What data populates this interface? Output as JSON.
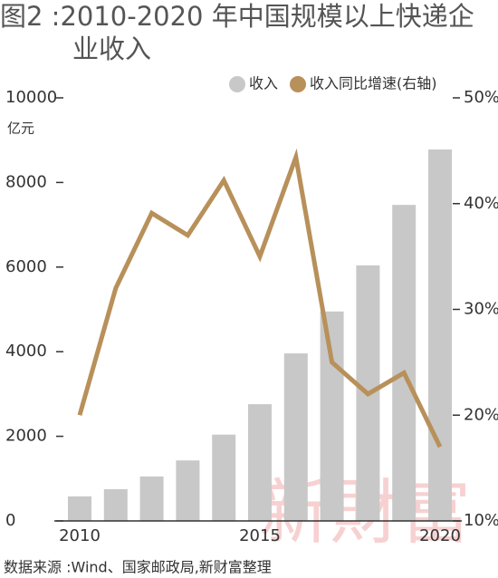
{
  "chart_data": {
    "type": "bar_line",
    "title": "图2 :2010-2020 年中国规模以上快递企业收入",
    "y_unit": "亿元",
    "source": "数据来源 :Wind、国家邮政局,新财富整理",
    "watermark": "新財富",
    "categories": [
      "2010",
      null,
      null,
      null,
      null,
      "2015",
      null,
      null,
      null,
      null,
      "2020"
    ],
    "series": [
      {
        "name": "收入",
        "color": "#c8c8c8",
        "type": "bar",
        "values": [
          580,
          750,
          1050,
          1430,
          2040,
          2760,
          3960,
          4950,
          6040,
          7470,
          8780
        ]
      },
      {
        "name": "收入同比增速(右轴)",
        "color": "#b8905a",
        "type": "line",
        "axis": "y2",
        "values": [
          20,
          32,
          39.1,
          37,
          42.2,
          35,
          44.4,
          25,
          22,
          24,
          17
        ]
      }
    ],
    "ylim": [
      0,
      10000
    ],
    "yticks": [
      0,
      2000,
      4000,
      6000,
      8000,
      10000
    ],
    "y2lim": [
      10,
      50
    ],
    "y2ticks": [
      {
        "value": 10,
        "label": "10%"
      },
      {
        "value": 20,
        "label": "20%"
      },
      {
        "value": 30,
        "label": "30%"
      },
      {
        "value": 40,
        "label": "40%"
      },
      {
        "value": 50,
        "label": "50%"
      }
    ]
  }
}
